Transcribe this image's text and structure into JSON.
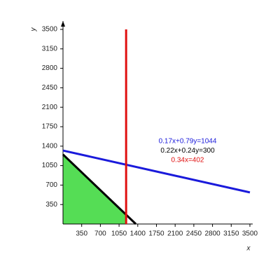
{
  "chart_data": {
    "type": "line",
    "xlabel": "x",
    "ylabel": "y",
    "xlim": [
      0,
      3500
    ],
    "ylim": [
      0,
      3500
    ],
    "xticks": [
      350,
      700,
      1050,
      1400,
      1750,
      2100,
      2450,
      2800,
      3150,
      3500
    ],
    "yticks": [
      350,
      700,
      1050,
      1400,
      1750,
      2100,
      2450,
      2800,
      3150,
      3500
    ],
    "region": {
      "color": "#55dd55",
      "x": [
        0,
        0,
        1182,
        1182
      ],
      "y": [
        0,
        1250,
        167,
        0
      ]
    },
    "series": [
      {
        "name": "0.17x+0.79y=1044",
        "color": "#1a1adb",
        "x": [
          0,
          3500
        ],
        "values": [
          1321,
          568
        ]
      },
      {
        "name": "0.22x+0.24y=300",
        "color": "#000000",
        "x": [
          0,
          1364
        ],
        "values": [
          1250,
          0
        ]
      },
      {
        "name": "0.34x=402",
        "color": "#e01010",
        "x": [
          1182,
          1182
        ],
        "values": [
          0,
          3500
        ]
      }
    ]
  }
}
